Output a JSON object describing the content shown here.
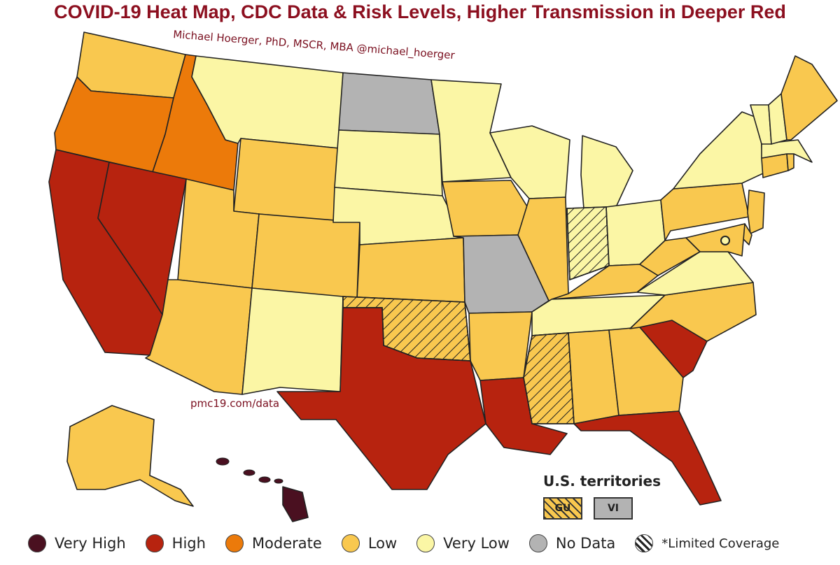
{
  "title": "COVID-19 Heat Map, CDC Data & Risk Levels, Higher Transmission in Deeper Red",
  "credit": "Michael Hoerger, PhD, MSCR, MBA  @michael_hoerger",
  "source": "pmc19.com/data",
  "levels": {
    "very_high": {
      "label": "Very High",
      "color": "#4a1020"
    },
    "high": {
      "label": "High",
      "color": "#b7230f"
    },
    "moderate": {
      "label": "Moderate",
      "color": "#ec7a0a"
    },
    "low": {
      "label": "Low",
      "color": "#f9c84f"
    },
    "very_low": {
      "label": "Very Low",
      "color": "#fbf6a5"
    },
    "no_data": {
      "label": "No Data",
      "color": "#b3b3b3"
    },
    "limited": {
      "label": "*Limited Coverage"
    }
  },
  "territories": {
    "title": "U.S. territories",
    "items": [
      {
        "code": "GU",
        "level": "low",
        "limited": true
      },
      {
        "code": "VI",
        "level": "no_data",
        "limited": false
      }
    ]
  },
  "states": {
    "WA": {
      "level": "low"
    },
    "OR": {
      "level": "moderate"
    },
    "ID": {
      "level": "moderate"
    },
    "CA": {
      "level": "high"
    },
    "NV": {
      "level": "high"
    },
    "MT": {
      "level": "very_low"
    },
    "WY": {
      "level": "low"
    },
    "UT": {
      "level": "low"
    },
    "AZ": {
      "level": "low"
    },
    "CO": {
      "level": "low"
    },
    "NM": {
      "level": "very_low"
    },
    "ND": {
      "level": "no_data"
    },
    "SD": {
      "level": "very_low"
    },
    "NE": {
      "level": "very_low"
    },
    "KS": {
      "level": "low"
    },
    "OK": {
      "level": "low",
      "limited": true
    },
    "TX": {
      "level": "high"
    },
    "MN": {
      "level": "very_low"
    },
    "IA": {
      "level": "low"
    },
    "MO": {
      "level": "no_data"
    },
    "AR": {
      "level": "low"
    },
    "LA": {
      "level": "high"
    },
    "WI": {
      "level": "very_low"
    },
    "IL": {
      "level": "low"
    },
    "MS": {
      "level": "low",
      "limited": true
    },
    "MI": {
      "level": "very_low"
    },
    "IN": {
      "level": "very_low",
      "limited": true
    },
    "KY": {
      "level": "low"
    },
    "TN": {
      "level": "very_low"
    },
    "AL": {
      "level": "low"
    },
    "OH": {
      "level": "very_low"
    },
    "GA": {
      "level": "low"
    },
    "FL": {
      "level": "high"
    },
    "SC": {
      "level": "high"
    },
    "NC": {
      "level": "low"
    },
    "VA": {
      "level": "very_low"
    },
    "WV": {
      "level": "low"
    },
    "PA": {
      "level": "low"
    },
    "NY": {
      "level": "very_low"
    },
    "NJ": {
      "level": "low"
    },
    "DE": {
      "level": "low"
    },
    "MD": {
      "level": "low"
    },
    "CT": {
      "level": "low"
    },
    "RI": {
      "level": "low"
    },
    "MA": {
      "level": "very_low"
    },
    "VT": {
      "level": "very_low"
    },
    "NH": {
      "level": "very_low"
    },
    "ME": {
      "level": "low"
    },
    "AK": {
      "level": "low"
    },
    "HI": {
      "level": "very_high"
    }
  }
}
